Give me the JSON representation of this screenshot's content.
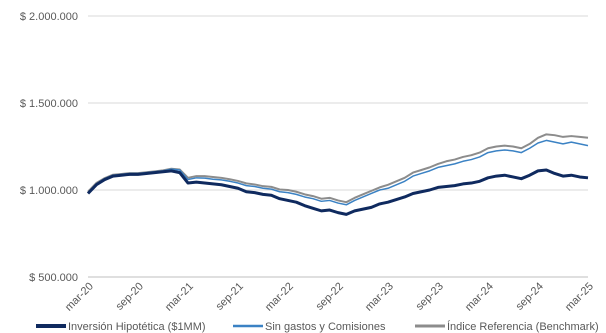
{
  "chart_data": {
    "type": "line",
    "title": "",
    "xlabel": "",
    "ylabel": "",
    "ylim": [
      500000,
      2000000
    ],
    "xlim": [
      "2020-03",
      "2025-03"
    ],
    "y_tick_labels": [
      "$ 500.000",
      "$ 1.000.000",
      "$ 1.500.000",
      "$ 2.000.000"
    ],
    "y_tick_values": [
      500000,
      1000000,
      1500000,
      2000000
    ],
    "x_tick_labels": [
      "mar-20",
      "sep-20",
      "mar-21",
      "sep-21",
      "mar-22",
      "sep-22",
      "mar-23",
      "sep-23",
      "mar-24",
      "sep-24",
      "mar-25"
    ],
    "x_tick_values": [
      "2020-03",
      "2020-09",
      "2021-03",
      "2021-09",
      "2022-03",
      "2022-09",
      "2023-03",
      "2023-09",
      "2024-03",
      "2024-09",
      "2025-03"
    ],
    "grid": "horizontal",
    "legend_position": "bottom",
    "x": [
      "2020-03",
      "2020-04",
      "2020-05",
      "2020-06",
      "2020-07",
      "2020-08",
      "2020-09",
      "2020-10",
      "2020-11",
      "2020-12",
      "2021-01",
      "2021-02",
      "2021-03",
      "2021-04",
      "2021-05",
      "2021-06",
      "2021-07",
      "2021-08",
      "2021-09",
      "2021-10",
      "2021-11",
      "2021-12",
      "2022-01",
      "2022-02",
      "2022-03",
      "2022-04",
      "2022-05",
      "2022-06",
      "2022-07",
      "2022-08",
      "2022-09",
      "2022-10",
      "2022-11",
      "2022-12",
      "2023-01",
      "2023-02",
      "2023-03",
      "2023-04",
      "2023-05",
      "2023-06",
      "2023-07",
      "2023-08",
      "2023-09",
      "2023-10",
      "2023-11",
      "2023-12",
      "2024-01",
      "2024-02",
      "2024-03",
      "2024-04",
      "2024-05",
      "2024-06",
      "2024-07",
      "2024-08",
      "2024-09",
      "2024-10",
      "2024-11",
      "2024-12",
      "2025-01",
      "2025-02",
      "2025-03"
    ],
    "series": [
      {
        "name": "Inversión Hipotética ($1MM)",
        "color": "#0f2a5f",
        "width": 3,
        "values": [
          980000,
          1030000,
          1060000,
          1080000,
          1085000,
          1090000,
          1090000,
          1095000,
          1100000,
          1105000,
          1110000,
          1100000,
          1040000,
          1045000,
          1040000,
          1035000,
          1030000,
          1020000,
          1010000,
          990000,
          985000,
          975000,
          970000,
          950000,
          940000,
          930000,
          910000,
          895000,
          880000,
          885000,
          870000,
          860000,
          880000,
          890000,
          900000,
          920000,
          930000,
          945000,
          960000,
          980000,
          990000,
          1000000,
          1015000,
          1020000,
          1025000,
          1035000,
          1040000,
          1050000,
          1070000,
          1080000,
          1085000,
          1075000,
          1065000,
          1085000,
          1110000,
          1115000,
          1095000,
          1080000,
          1085000,
          1075000,
          1070000
        ]
      },
      {
        "name": "Sin gastos y Comisiones",
        "color": "#3b82c4",
        "width": 1.5,
        "values": [
          985000,
          1035000,
          1065000,
          1085000,
          1090000,
          1095000,
          1095000,
          1100000,
          1105000,
          1110000,
          1120000,
          1115000,
          1060000,
          1070000,
          1068000,
          1062000,
          1058000,
          1050000,
          1040000,
          1025000,
          1020000,
          1010000,
          1005000,
          990000,
          985000,
          975000,
          960000,
          950000,
          935000,
          940000,
          925000,
          915000,
          940000,
          960000,
          980000,
          1000000,
          1010000,
          1030000,
          1050000,
          1080000,
          1095000,
          1110000,
          1130000,
          1140000,
          1150000,
          1165000,
          1175000,
          1190000,
          1215000,
          1225000,
          1230000,
          1225000,
          1215000,
          1240000,
          1270000,
          1285000,
          1275000,
          1265000,
          1275000,
          1265000,
          1255000
        ]
      },
      {
        "name": "Índice Referencia (Benchmark)",
        "color": "#8c8c8c",
        "width": 2,
        "values": [
          990000,
          1040000,
          1068000,
          1088000,
          1092000,
          1097000,
          1097000,
          1102000,
          1107000,
          1113000,
          1122000,
          1118000,
          1070000,
          1080000,
          1080000,
          1075000,
          1070000,
          1062000,
          1052000,
          1038000,
          1032000,
          1022000,
          1018000,
          1003000,
          1000000,
          990000,
          975000,
          965000,
          950000,
          955000,
          940000,
          930000,
          955000,
          975000,
          995000,
          1015000,
          1030000,
          1050000,
          1070000,
          1100000,
          1115000,
          1130000,
          1150000,
          1165000,
          1175000,
          1190000,
          1200000,
          1215000,
          1240000,
          1250000,
          1255000,
          1250000,
          1240000,
          1265000,
          1300000,
          1320000,
          1315000,
          1305000,
          1310000,
          1305000,
          1300000
        ]
      }
    ]
  }
}
